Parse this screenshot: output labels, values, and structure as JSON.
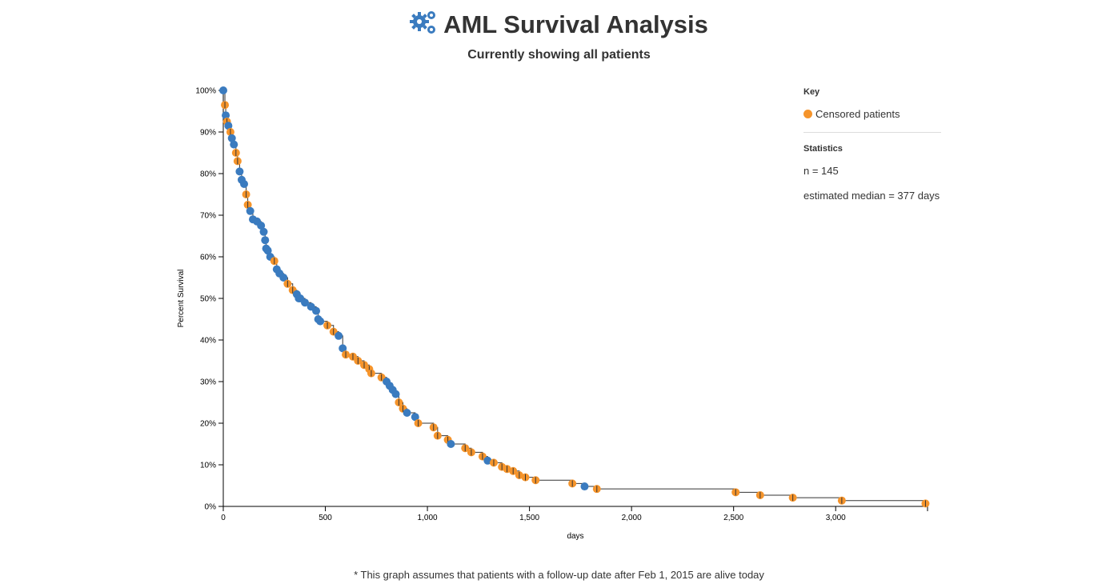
{
  "header": {
    "title": "AML Survival Analysis",
    "subtitle": "Currently showing all patients",
    "icon": "gears-icon"
  },
  "legend": {
    "key_title": "Key",
    "censored_label": "Censored patients",
    "stats_title": "Statistics",
    "n_text": "n = 145",
    "median_text": "estimated median = 377 days"
  },
  "footnote": "* This graph assumes that patients with a follow-up date after Feb 1, 2015 are alive today",
  "colors": {
    "event": "#3a7bbf",
    "censored": "#f5942b",
    "line": "#333333",
    "text": "#333333"
  },
  "chart_data": {
    "type": "line",
    "title": "",
    "xlabel": "days",
    "ylabel": "Percent Survival",
    "xlim": [
      0,
      3450
    ],
    "ylim": [
      0,
      100
    ],
    "x_ticks": [
      0,
      500,
      1000,
      1500,
      2000,
      2500,
      3000
    ],
    "x_tick_labels": [
      "0",
      "500",
      "1,000",
      "1,500",
      "2,000",
      "2,500",
      "3,000"
    ],
    "y_ticks": [
      0,
      10,
      20,
      30,
      40,
      50,
      60,
      70,
      80,
      90,
      100
    ],
    "y_tick_labels": [
      "0%",
      "10%",
      "20%",
      "30%",
      "40%",
      "50%",
      "60%",
      "70%",
      "80%",
      "90%",
      "100%"
    ],
    "series": [
      {
        "name": "Survival",
        "points": [
          [
            0,
            100
          ],
          [
            8,
            96.5
          ],
          [
            12,
            94
          ],
          [
            18,
            92.5
          ],
          [
            25,
            91.5
          ],
          [
            35,
            90
          ],
          [
            42,
            88.5
          ],
          [
            52,
            87
          ],
          [
            62,
            85
          ],
          [
            70,
            83
          ],
          [
            80,
            80.5
          ],
          [
            90,
            78.5
          ],
          [
            102,
            77.5
          ],
          [
            112,
            75
          ],
          [
            120,
            72.5
          ],
          [
            132,
            71
          ],
          [
            145,
            69
          ],
          [
            165,
            68.5
          ],
          [
            185,
            67.5
          ],
          [
            198,
            66
          ],
          [
            205,
            64
          ],
          [
            210,
            62
          ],
          [
            218,
            61.5
          ],
          [
            230,
            60
          ],
          [
            250,
            59
          ],
          [
            262,
            57
          ],
          [
            275,
            56
          ],
          [
            295,
            55
          ],
          [
            315,
            53.5
          ],
          [
            340,
            52
          ],
          [
            360,
            51
          ],
          [
            370,
            50
          ],
          [
            377,
            50
          ],
          [
            400,
            49
          ],
          [
            430,
            48
          ],
          [
            455,
            47
          ],
          [
            465,
            45
          ],
          [
            475,
            44.5
          ],
          [
            510,
            43.5
          ],
          [
            540,
            42
          ],
          [
            565,
            41
          ],
          [
            585,
            38
          ],
          [
            600,
            36.5
          ],
          [
            635,
            36
          ],
          [
            660,
            35
          ],
          [
            690,
            34
          ],
          [
            715,
            33
          ],
          [
            725,
            32
          ],
          [
            775,
            31
          ],
          [
            800,
            30
          ],
          [
            815,
            29
          ],
          [
            830,
            28
          ],
          [
            845,
            27
          ],
          [
            860,
            25
          ],
          [
            880,
            23.5
          ],
          [
            900,
            22.5
          ],
          [
            940,
            21.5
          ],
          [
            955,
            20
          ],
          [
            1030,
            19
          ],
          [
            1050,
            17
          ],
          [
            1100,
            16
          ],
          [
            1115,
            15
          ],
          [
            1185,
            14
          ],
          [
            1215,
            13
          ],
          [
            1270,
            12
          ],
          [
            1295,
            11
          ],
          [
            1325,
            10.5
          ],
          [
            1365,
            9.5
          ],
          [
            1390,
            9
          ],
          [
            1420,
            8.5
          ],
          [
            1450,
            7.5
          ],
          [
            1480,
            7
          ],
          [
            1530,
            6.3
          ],
          [
            1710,
            5.5
          ],
          [
            1770,
            4.8
          ],
          [
            1830,
            4.2
          ],
          [
            2510,
            3.4
          ],
          [
            2630,
            2.7
          ],
          [
            2790,
            2.1
          ],
          [
            3030,
            1.4
          ],
          [
            3440,
            0.7
          ]
        ]
      }
    ],
    "censored_points": [
      [
        8,
        96.5
      ],
      [
        18,
        92.5
      ],
      [
        35,
        90
      ],
      [
        62,
        85
      ],
      [
        70,
        83
      ],
      [
        112,
        75
      ],
      [
        120,
        72.5
      ],
      [
        250,
        59
      ],
      [
        315,
        53.5
      ],
      [
        340,
        52
      ],
      [
        510,
        43.5
      ],
      [
        540,
        42
      ],
      [
        600,
        36.5
      ],
      [
        635,
        36
      ],
      [
        660,
        35
      ],
      [
        690,
        34
      ],
      [
        715,
        33
      ],
      [
        725,
        32
      ],
      [
        775,
        31
      ],
      [
        860,
        25
      ],
      [
        880,
        23.5
      ],
      [
        955,
        20
      ],
      [
        1030,
        19
      ],
      [
        1050,
        17
      ],
      [
        1100,
        16
      ],
      [
        1185,
        14
      ],
      [
        1215,
        13
      ],
      [
        1270,
        12
      ],
      [
        1325,
        10.5
      ],
      [
        1365,
        9.5
      ],
      [
        1390,
        9
      ],
      [
        1420,
        8.5
      ],
      [
        1450,
        7.5
      ],
      [
        1480,
        7
      ],
      [
        1530,
        6.3
      ],
      [
        1710,
        5.5
      ],
      [
        1830,
        4.2
      ],
      [
        2510,
        3.4
      ],
      [
        2630,
        2.7
      ],
      [
        2790,
        2.1
      ],
      [
        3030,
        1.4
      ],
      [
        3440,
        0.7
      ]
    ]
  }
}
